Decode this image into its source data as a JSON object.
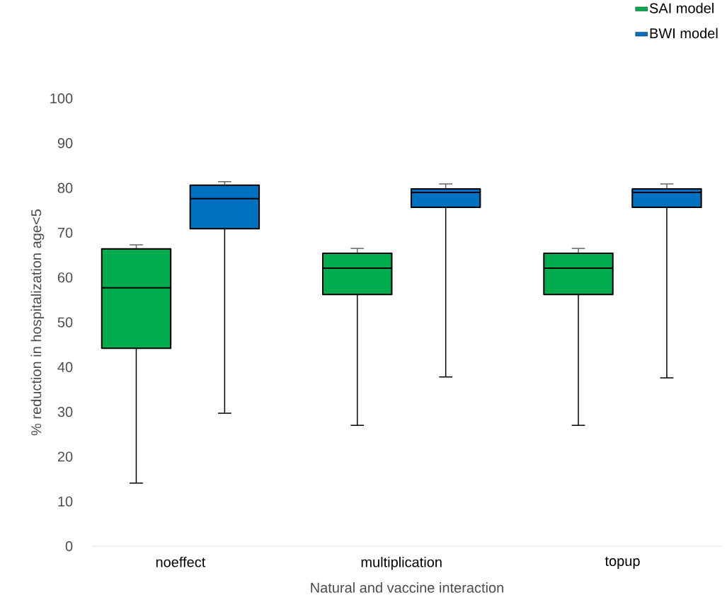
{
  "chart_data": {
    "type": "box",
    "xlabel": "Natural and vaccine interaction",
    "ylabel": "% reduction in hospitalization age<5",
    "categories": [
      "noeffect",
      "multiplication",
      "topup"
    ],
    "ylim": [
      0,
      100
    ],
    "yticks": [
      0,
      10,
      20,
      30,
      40,
      50,
      60,
      70,
      80,
      90,
      100
    ],
    "grid": false,
    "legend": "top right",
    "series": [
      {
        "name": "SAI model",
        "color": "#00ac4e",
        "boxes": [
          {
            "low": 14.1,
            "q1": 44.2,
            "median": 57.7,
            "q3": 66.4,
            "high": 67.3
          },
          {
            "low": 27.0,
            "q1": 56.2,
            "median": 62.1,
            "q3": 65.4,
            "high": 66.5
          },
          {
            "low": 27.0,
            "q1": 56.2,
            "median": 62.1,
            "q3": 65.4,
            "high": 66.5
          }
        ]
      },
      {
        "name": "BWI model",
        "color": "#0070c0",
        "boxes": [
          {
            "low": 29.7,
            "q1": 70.9,
            "median": 77.6,
            "q3": 80.6,
            "high": 81.4
          },
          {
            "low": 37.8,
            "q1": 75.7,
            "median": 79.0,
            "q3": 79.8,
            "high": 80.9
          },
          {
            "low": 37.6,
            "q1": 75.7,
            "median": 79.0,
            "q3": 79.8,
            "high": 80.9
          }
        ]
      }
    ]
  }
}
